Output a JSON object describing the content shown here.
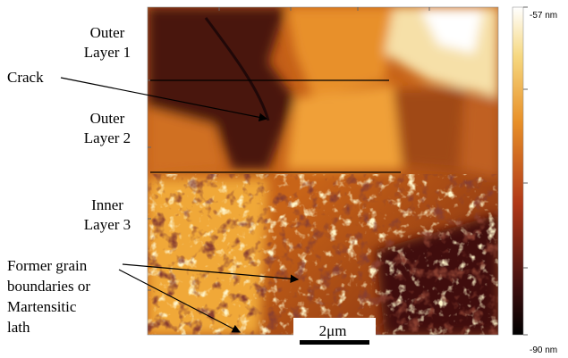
{
  "labels": {
    "outer_layer_1": [
      "Outer",
      "Layer 1"
    ],
    "crack": "Crack",
    "outer_layer_2": [
      "Outer",
      "Layer 2"
    ],
    "inner_layer_3": [
      "Inner",
      "Layer 3"
    ],
    "grain_boundaries": [
      "Former grain",
      "boundaries or",
      "Martensitic",
      "lath"
    ]
  },
  "scale_bar": "2μm",
  "colorbar": {
    "top_label": "-57 nm",
    "bottom_label": "-90 nm"
  }
}
